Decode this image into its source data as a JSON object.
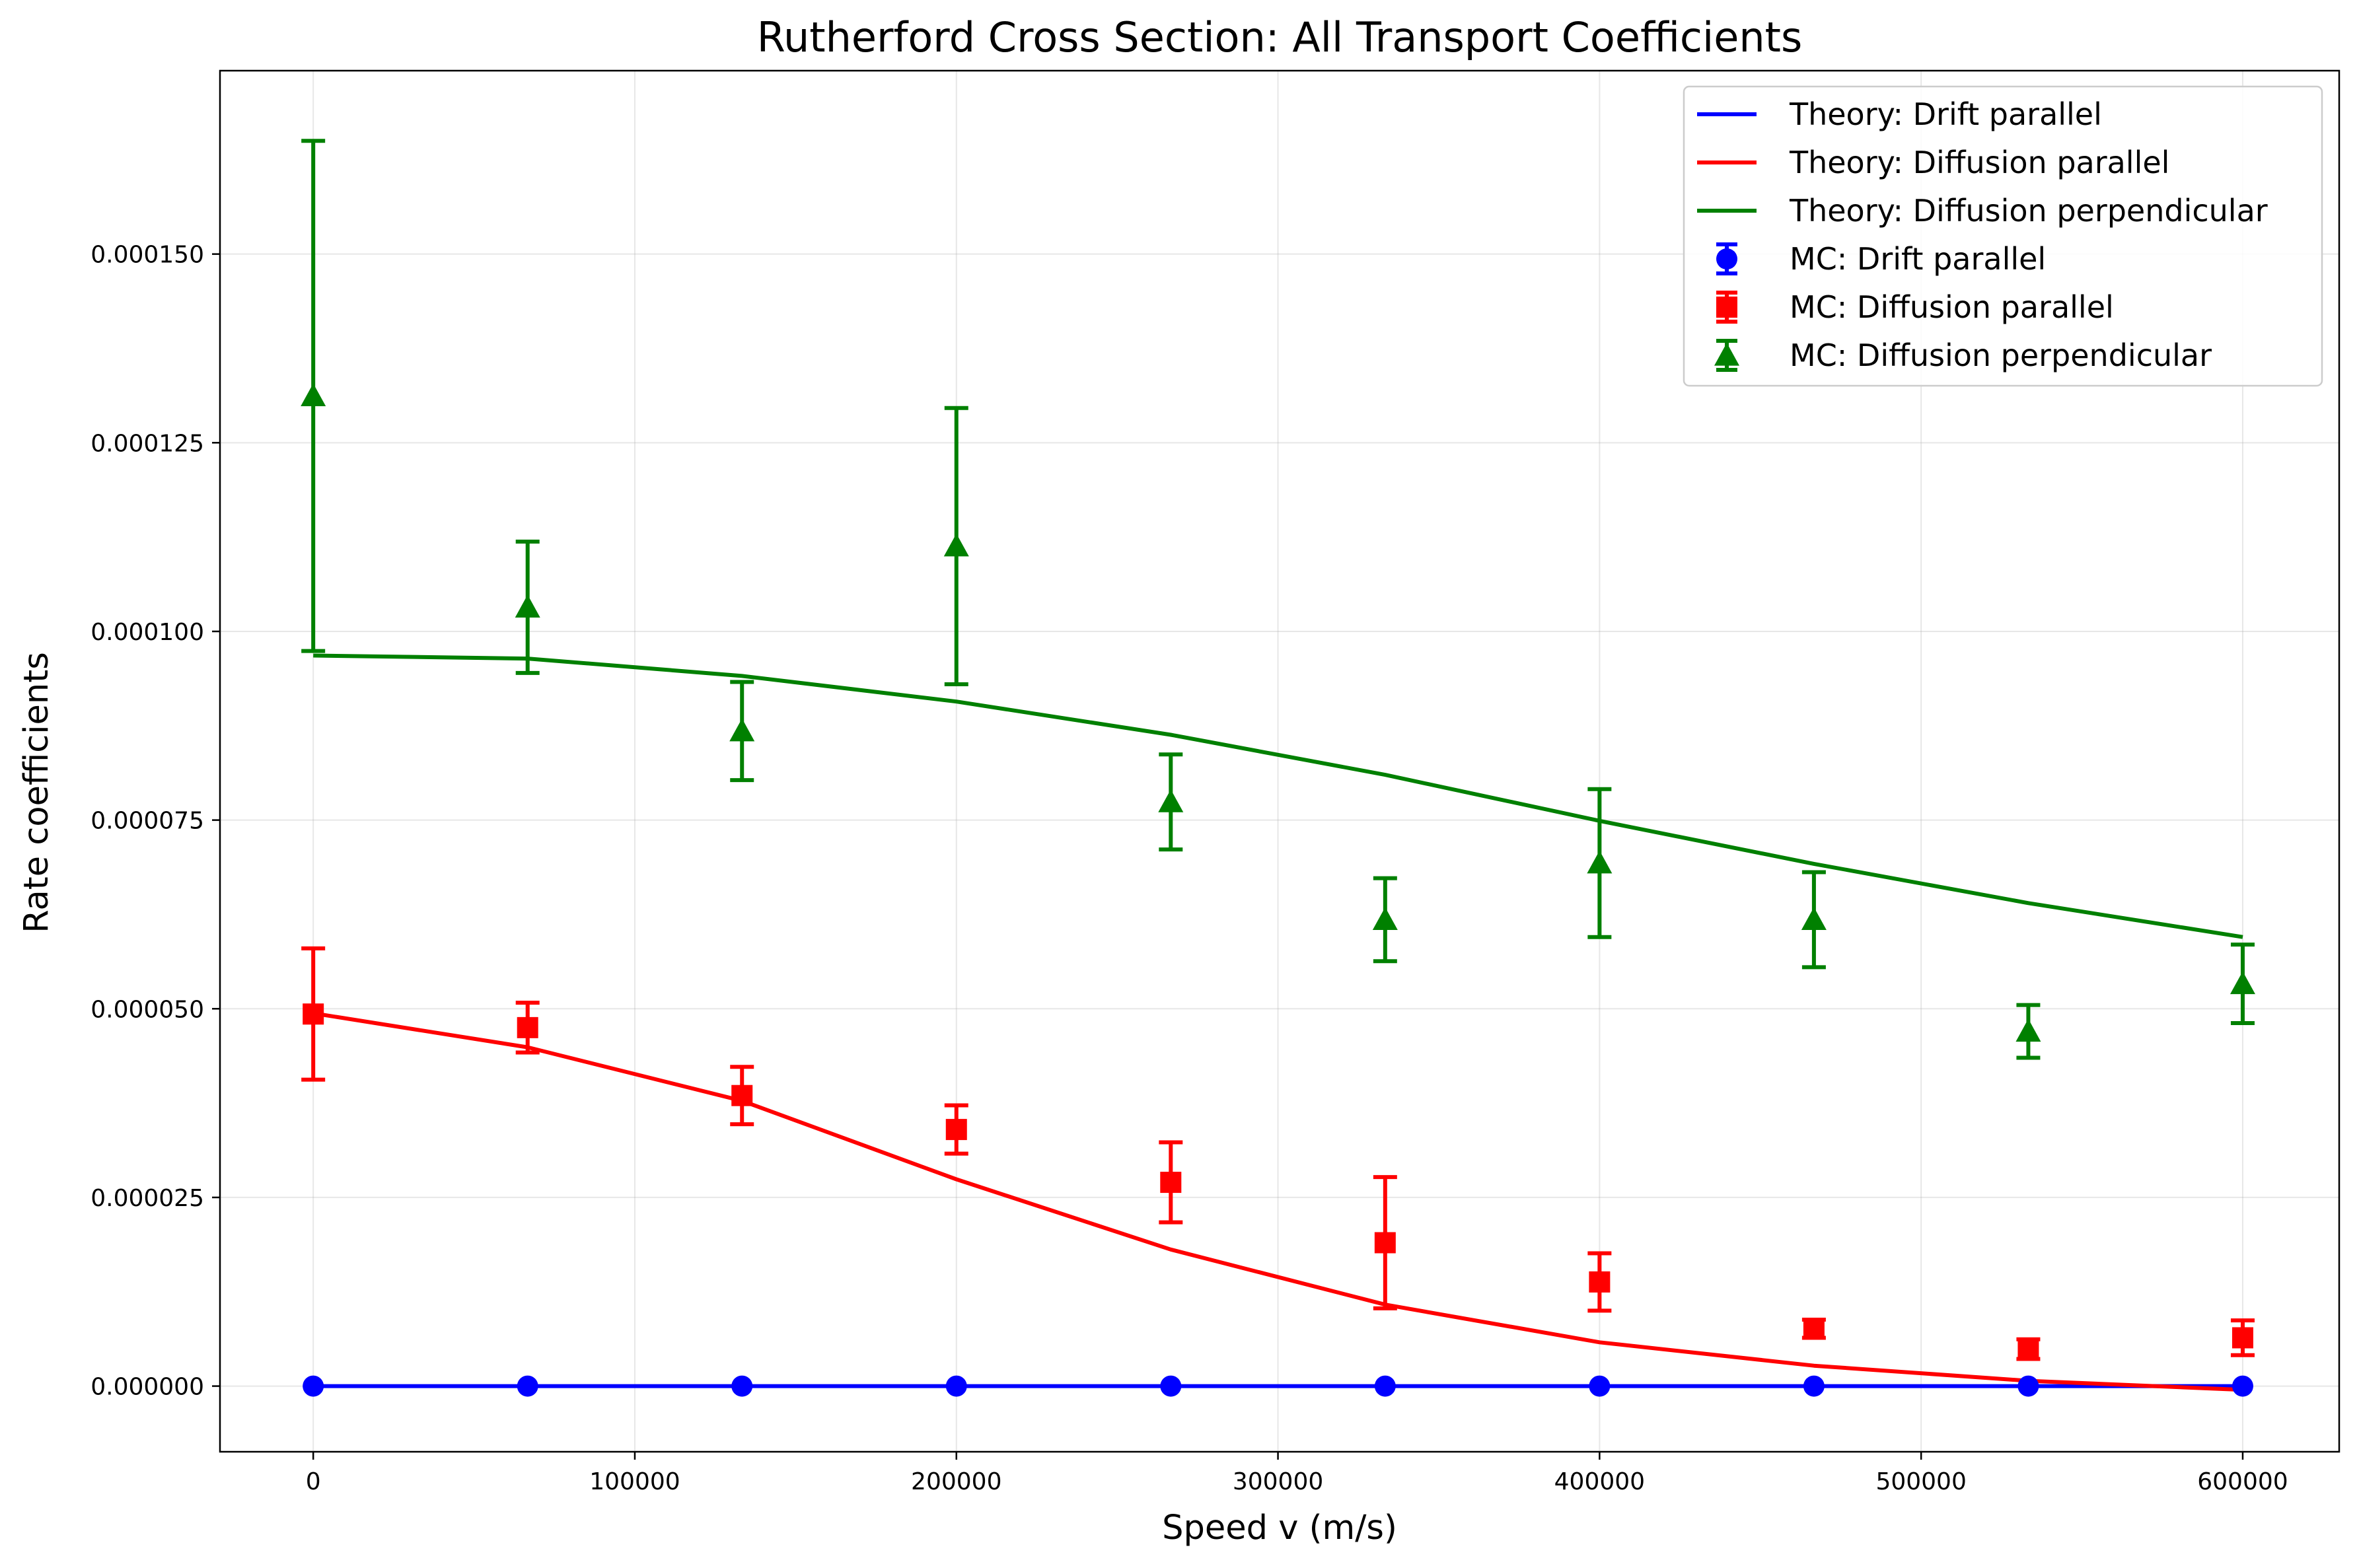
{
  "chart_data": {
    "type": "line",
    "title": "Rutherford Cross Section: All Transport Coefficients",
    "xlabel": "Speed v (m/s)",
    "ylabel": "Rate coefficients",
    "xlim": [
      -29000,
      630000
    ],
    "ylim": [
      -8.7e-06,
      0.0001743
    ],
    "xticks": [
      0,
      100000,
      200000,
      300000,
      400000,
      500000,
      600000
    ],
    "xtick_labels": [
      "0",
      "100000",
      "200000",
      "300000",
      "400000",
      "500000",
      "600000"
    ],
    "yticks": [
      0,
      2.5e-05,
      5e-05,
      7.5e-05,
      0.0001,
      0.000125,
      0.00015
    ],
    "ytick_labels": [
      "0.000000",
      "0.000025",
      "0.000050",
      "0.000075",
      "0.000100",
      "0.000125",
      "0.000150"
    ],
    "grid": true,
    "legend_position": "top-right",
    "x": [
      0,
      66667,
      133333,
      200000,
      266667,
      333333,
      400000,
      466667,
      533333,
      600000
    ],
    "theory": [
      {
        "name": "Theory: Drift parallel",
        "color": "#0000ff",
        "values": [
          0,
          0,
          0,
          0,
          0,
          0,
          0,
          0,
          0,
          0
        ]
      },
      {
        "name": "Theory: Diffusion parallel",
        "color": "#ff0000",
        "values": [
          4.94e-05,
          4.49e-05,
          3.78e-05,
          2.74e-05,
          1.81e-05,
          1.08e-05,
          5.8e-06,
          2.7e-06,
          7e-07,
          -5e-07
        ]
      },
      {
        "name": "Theory: Diffusion perpendicular",
        "color": "#008000",
        "values": [
          9.68e-05,
          9.64e-05,
          9.41e-05,
          9.07e-05,
          8.63e-05,
          8.1e-05,
          7.49e-05,
          6.92e-05,
          6.4e-05,
          5.95e-05
        ]
      }
    ],
    "mc": [
      {
        "name": "MC: Drift parallel",
        "color": "#0000ff",
        "marker": "circle",
        "values": [
          0,
          0,
          0,
          0,
          0,
          0,
          0,
          0,
          0,
          0
        ],
        "errors": [
          0,
          0,
          0,
          0,
          0,
          0,
          0,
          0,
          0,
          0
        ]
      },
      {
        "name": "MC: Diffusion parallel",
        "color": "#ff0000",
        "marker": "square",
        "values": [
          4.93e-05,
          4.75e-05,
          3.85e-05,
          3.4e-05,
          2.7e-05,
          1.9e-05,
          1.38e-05,
          7.6e-06,
          4.9e-06,
          6.4e-06
        ],
        "errors": [
          8.7e-06,
          3.3e-06,
          3.8e-06,
          3.2e-06,
          5.3e-06,
          8.7e-06,
          3.8e-06,
          1.2e-06,
          1.3e-06,
          2.3e-06
        ]
      },
      {
        "name": "MC: Diffusion perpendicular",
        "color": "#008000",
        "marker": "triangle",
        "values": [
          0.0001312,
          0.0001032,
          8.68e-05,
          0.0001113,
          7.74e-05,
          6.18e-05,
          6.93e-05,
          6.18e-05,
          4.7e-05,
          5.33e-05
        ],
        "errors": [
          3.38e-05,
          8.7e-06,
          6.5e-06,
          1.83e-05,
          6.3e-06,
          5.5e-06,
          9.8e-06,
          6.3e-06,
          3.5e-06,
          5.2e-06
        ]
      }
    ]
  }
}
